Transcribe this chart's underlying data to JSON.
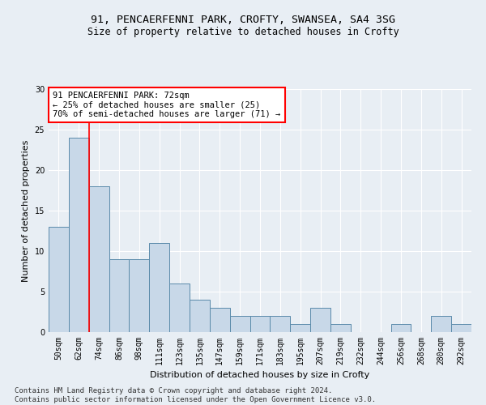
{
  "title_line1": "91, PENCAERFENNI PARK, CROFTY, SWANSEA, SA4 3SG",
  "title_line2": "Size of property relative to detached houses in Crofty",
  "xlabel": "Distribution of detached houses by size in Crofty",
  "ylabel": "Number of detached properties",
  "footer_line1": "Contains HM Land Registry data © Crown copyright and database right 2024.",
  "footer_line2": "Contains public sector information licensed under the Open Government Licence v3.0.",
  "bar_labels": [
    "50sqm",
    "62sqm",
    "74sqm",
    "86sqm",
    "98sqm",
    "111sqm",
    "123sqm",
    "135sqm",
    "147sqm",
    "159sqm",
    "171sqm",
    "183sqm",
    "195sqm",
    "207sqm",
    "219sqm",
    "232sqm",
    "244sqm",
    "256sqm",
    "268sqm",
    "280sqm",
    "292sqm"
  ],
  "bar_values": [
    13,
    24,
    18,
    9,
    9,
    11,
    6,
    4,
    3,
    2,
    2,
    2,
    1,
    3,
    1,
    0,
    0,
    1,
    0,
    2,
    1
  ],
  "bar_color": "#c8d8e8",
  "bar_edge_color": "#5a8aaa",
  "background_color": "#e8eef4",
  "annotation_text": "91 PENCAERFENNI PARK: 72sqm\n← 25% of detached houses are smaller (25)\n70% of semi-detached houses are larger (71) →",
  "annotation_box_color": "white",
  "annotation_box_edge": "red",
  "vline_color": "red",
  "vline_x": 1.5,
  "ylim": [
    0,
    30
  ],
  "yticks": [
    0,
    5,
    10,
    15,
    20,
    25,
    30
  ],
  "grid_color": "white",
  "title_fontsize": 9.5,
  "subtitle_fontsize": 8.5,
  "axis_label_fontsize": 8,
  "tick_fontsize": 7,
  "annotation_fontsize": 7.5,
  "footer_fontsize": 6.5
}
